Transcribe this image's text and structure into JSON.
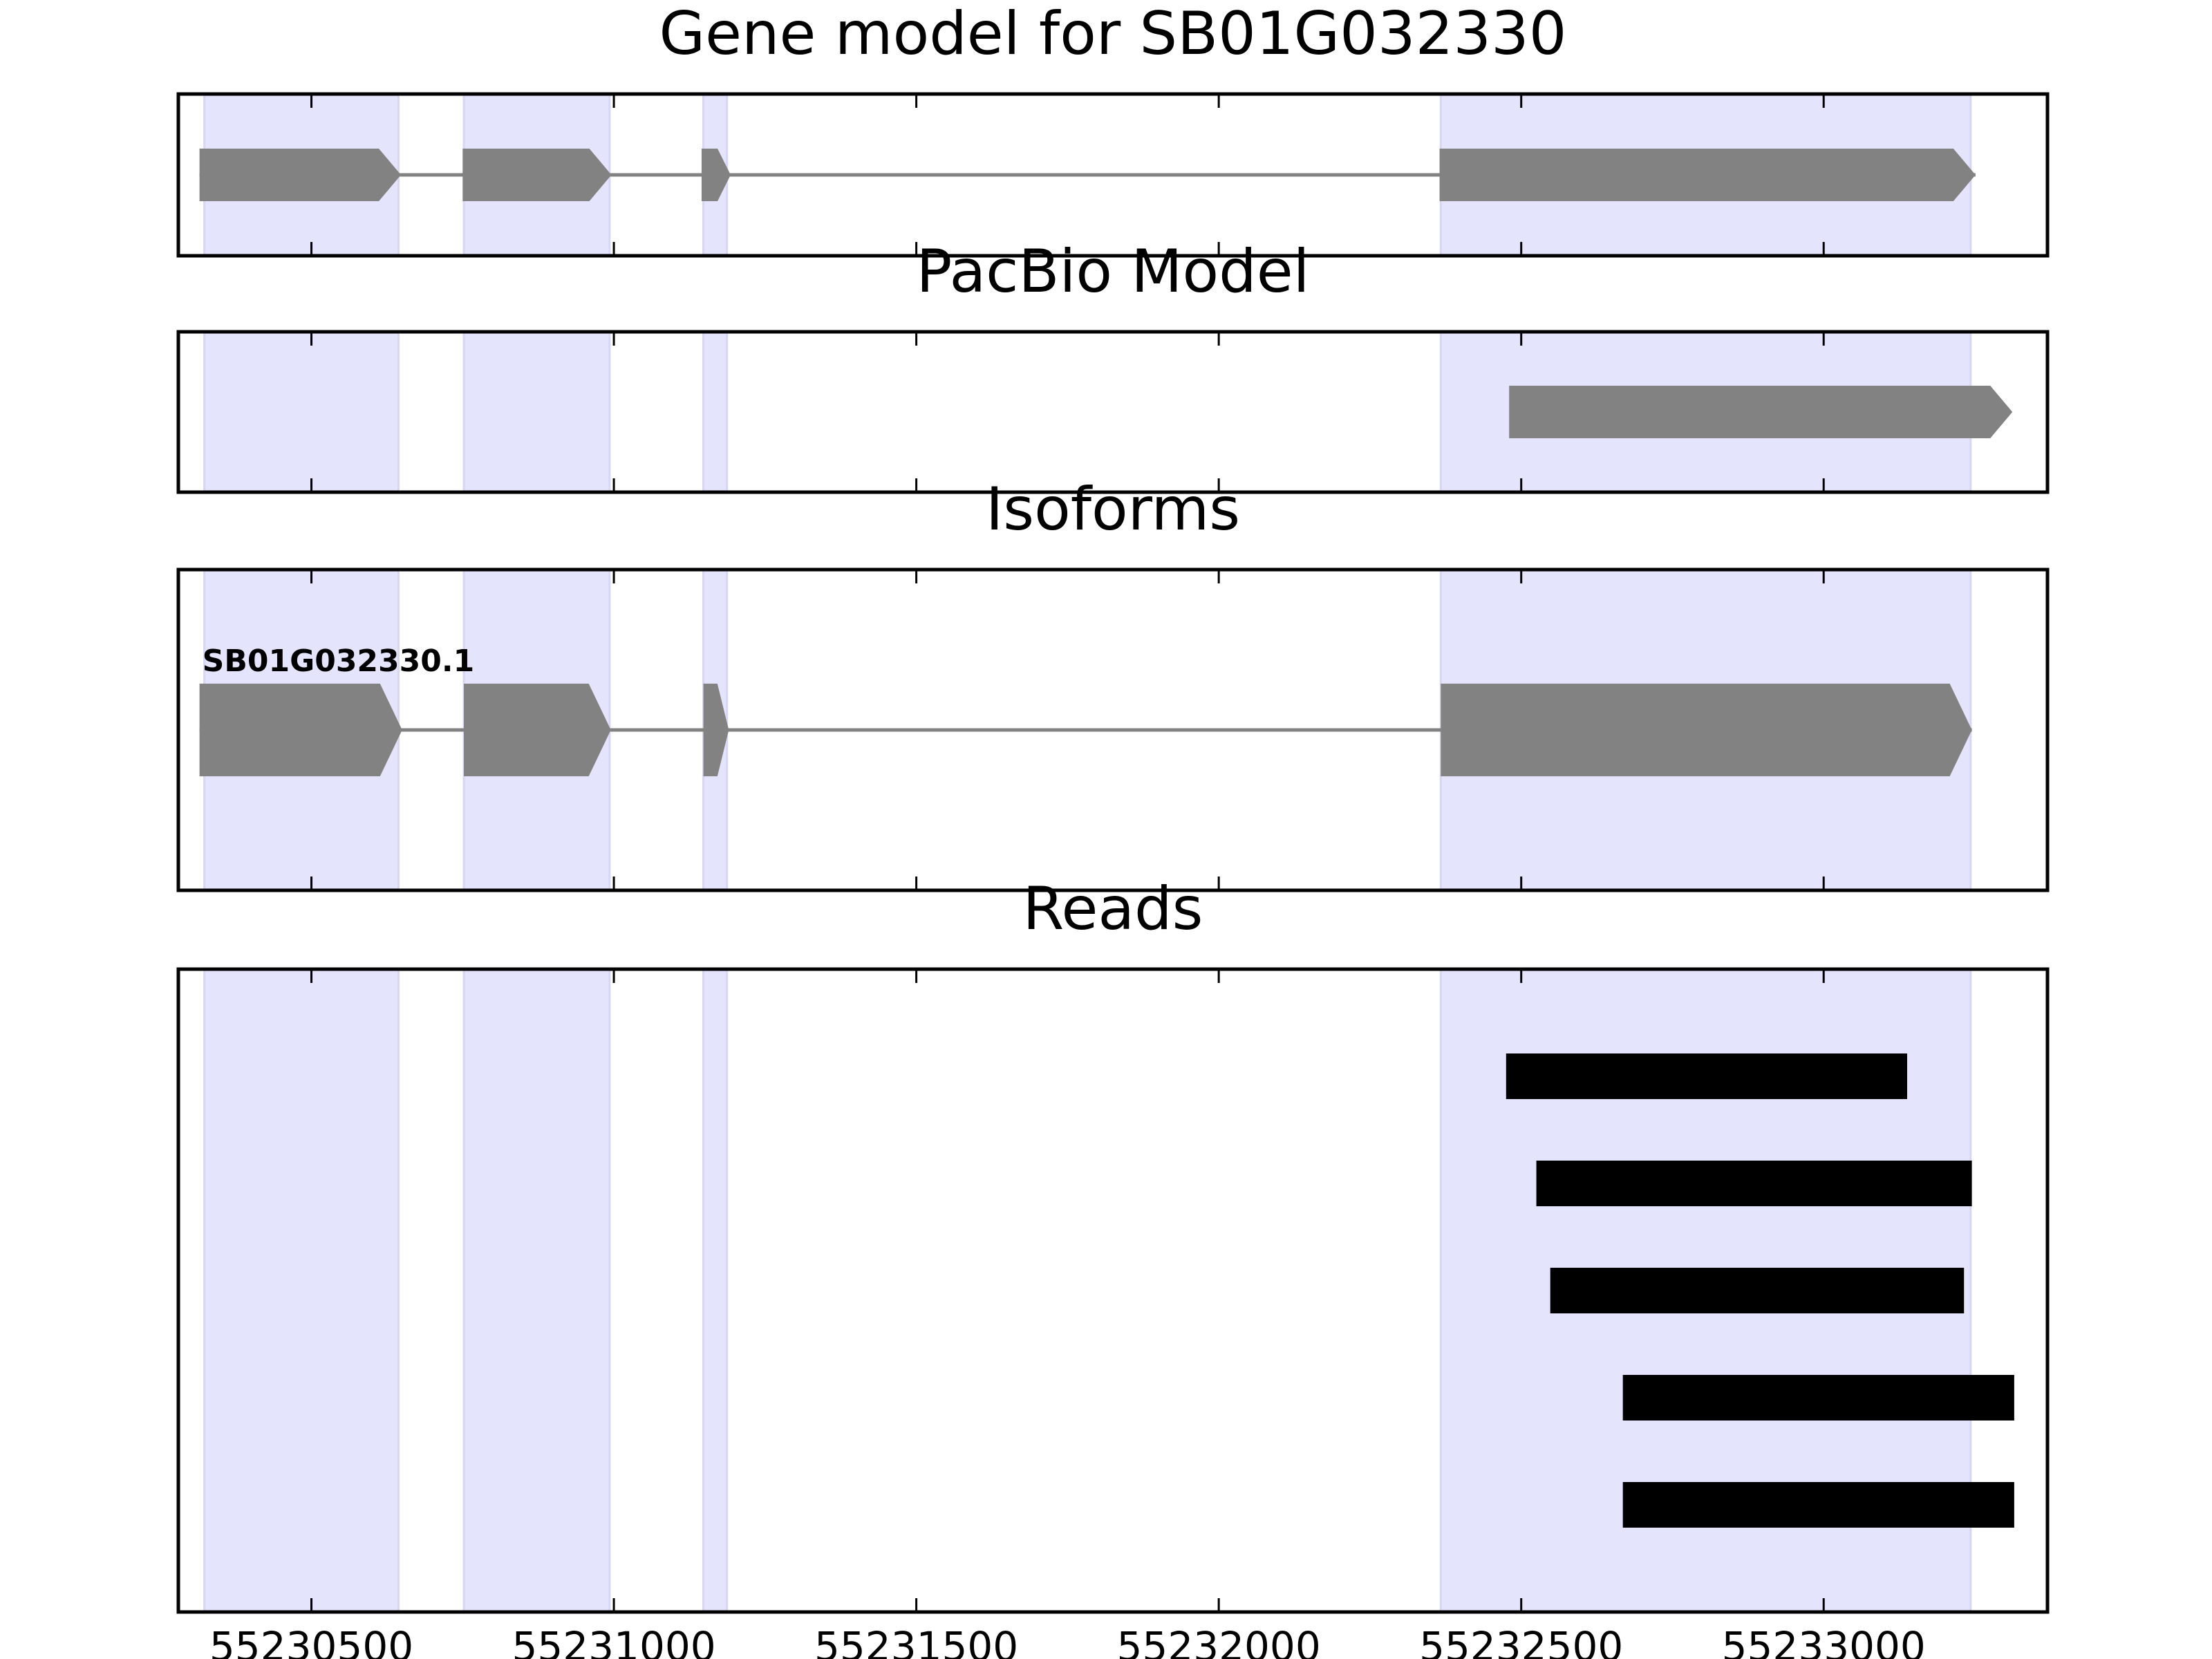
{
  "chart_data": {
    "type": "gene-track",
    "x_axis": {
      "range": [
        55230280,
        55233370
      ],
      "ticks": [
        55230500,
        55231000,
        55231500,
        55232000,
        55232500,
        55233000
      ],
      "tick_labels": [
        "55230500",
        "55231000",
        "55231500",
        "55232000",
        "55232500",
        "55233000"
      ]
    },
    "colors": {
      "exon_shade": "#e4e4fc",
      "feature": "#828282",
      "read": "#000000",
      "frame": "#000000"
    },
    "exon_regions": [
      [
        55230323,
        55230644
      ],
      [
        55230752,
        55230993
      ],
      [
        55231148,
        55231187
      ],
      [
        55232367,
        55233243
      ]
    ],
    "panels": [
      {
        "id": "gene-model",
        "title": "Gene model for SB01G032330",
        "tracks": [
          {
            "exons": [
              [
                55230315,
                55230648
              ],
              [
                55230750,
                55230996
              ],
              [
                55231145,
                55231193
              ],
              [
                55232365,
                55233251
              ]
            ]
          }
        ]
      },
      {
        "id": "pacbio-model",
        "title": "PacBio Model",
        "tracks": [
          {
            "exons": [
              [
                55232480,
                55233312
              ]
            ]
          }
        ]
      },
      {
        "id": "isoforms",
        "title": "Isoforms",
        "tracks": [
          {
            "name": "SB01G032330.1",
            "exons": [
              [
                55230315,
                55230650
              ],
              [
                55230752,
                55230995
              ],
              [
                55231148,
                55231190
              ],
              [
                55232367,
                55233245
              ]
            ]
          }
        ]
      },
      {
        "id": "reads",
        "title": "Reads",
        "reads": [
          [
            55232475,
            55233138
          ],
          [
            55232525,
            55233245
          ],
          [
            55232548,
            55233232
          ],
          [
            55232668,
            55233315
          ],
          [
            55232668,
            55233315
          ]
        ]
      }
    ]
  }
}
